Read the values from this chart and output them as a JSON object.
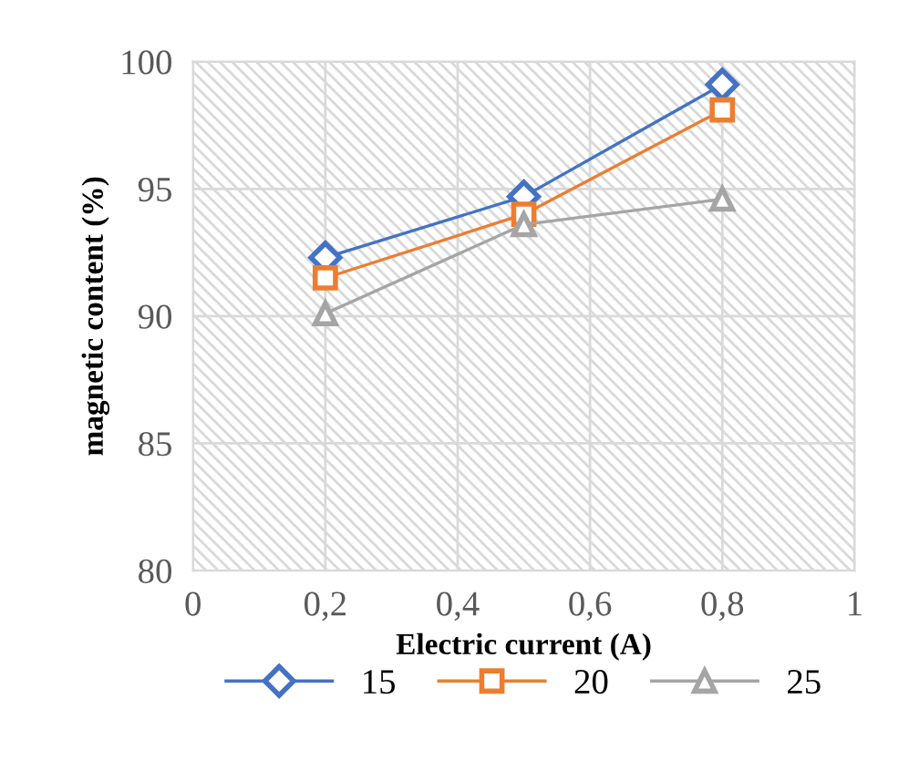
{
  "chart_data": {
    "type": "line",
    "xlabel": "Electric current (A)",
    "ylabel": "magnetic content (%)",
    "x": [
      0.2,
      0.5,
      0.8
    ],
    "series": [
      {
        "name": "15",
        "color": "#4472c4",
        "marker": "diamond",
        "values": [
          92.3,
          94.7,
          99.1
        ]
      },
      {
        "name": "20",
        "color": "#ed7d31",
        "marker": "square",
        "values": [
          91.5,
          94.0,
          98.1
        ]
      },
      {
        "name": "25",
        "color": "#a5a5a5",
        "marker": "triangle",
        "values": [
          90.1,
          93.6,
          94.6
        ]
      }
    ],
    "xlim": [
      0,
      1
    ],
    "xticks": [
      {
        "value": 0,
        "label": "0"
      },
      {
        "value": 0.2,
        "label": "0,2"
      },
      {
        "value": 0.4,
        "label": "0,4"
      },
      {
        "value": 0.6,
        "label": "0,6"
      },
      {
        "value": 0.8,
        "label": "0,8"
      },
      {
        "value": 1,
        "label": "1"
      }
    ],
    "ylim": [
      80,
      100
    ],
    "yticks": [
      80,
      85,
      90,
      95,
      100
    ],
    "grid": true,
    "legend": "bottom"
  }
}
